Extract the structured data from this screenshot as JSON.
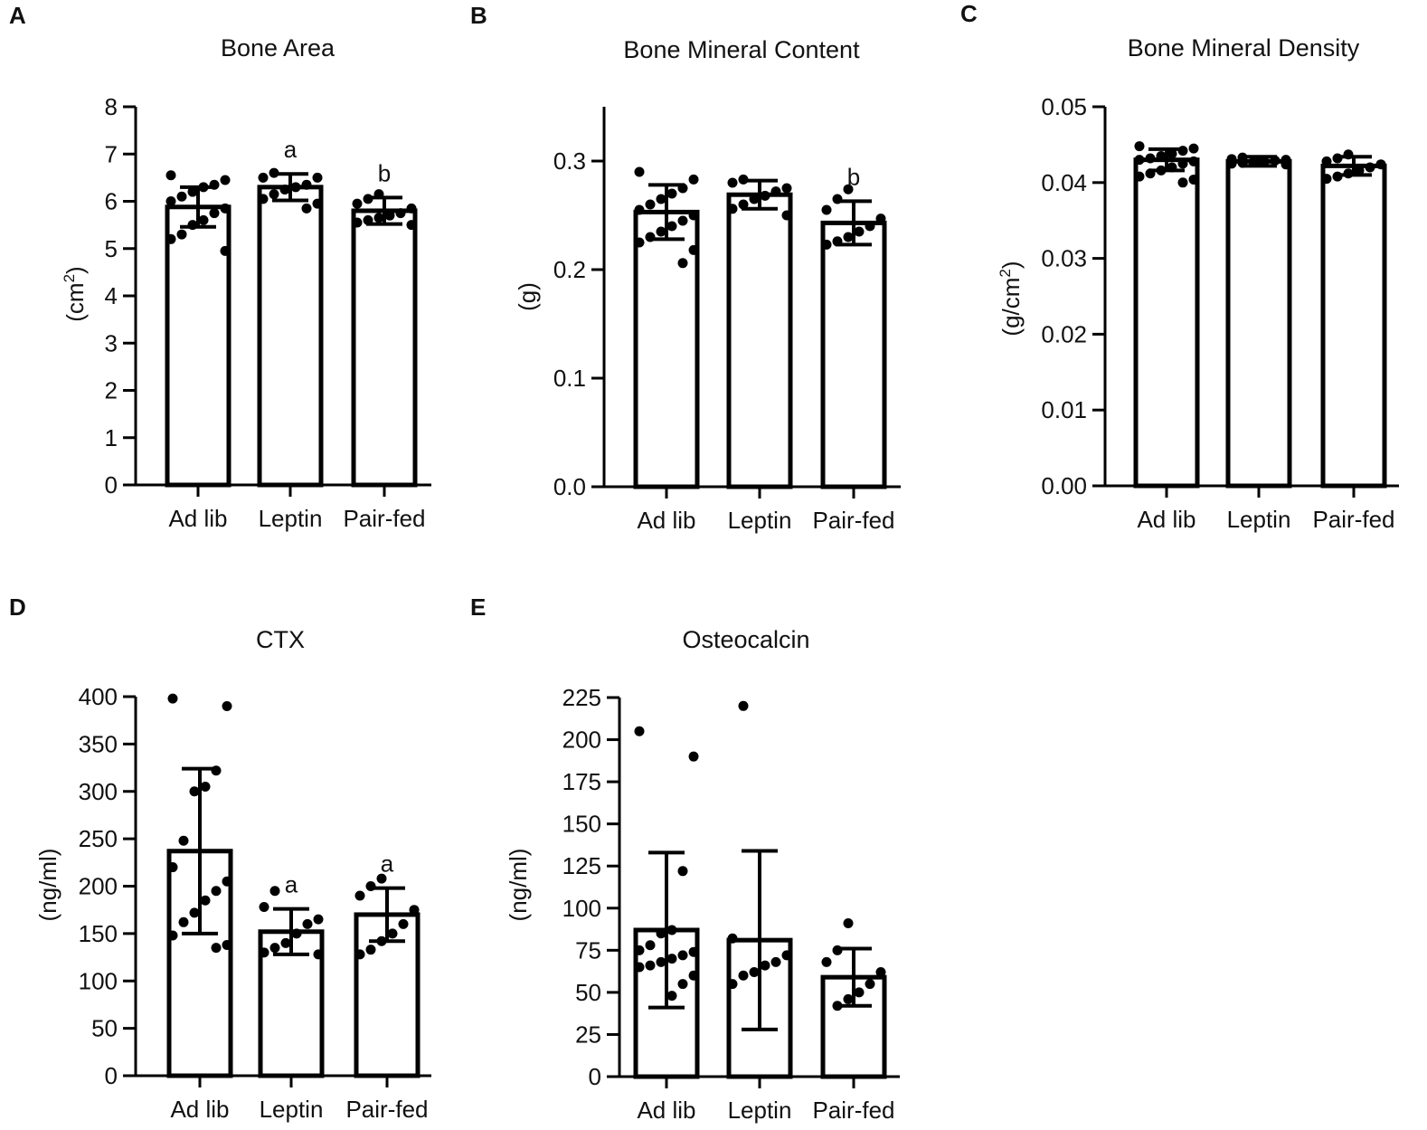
{
  "colors": {
    "ink": "#000000",
    "bar_fill": "#ffffff"
  },
  "chart_data": [
    {
      "panel": "A",
      "type": "bar",
      "title": "Bone Area",
      "ylabel": "(cm²)",
      "ylabel_main": "(cm",
      "ylabel_sup": "2",
      "ylabel_end": ")",
      "xlabel": "",
      "ylim": [
        0,
        8
      ],
      "yticks": [
        0,
        1,
        2,
        3,
        4,
        5,
        6,
        7,
        8
      ],
      "ytick_labels": [
        "0",
        "1",
        "2",
        "3",
        "4",
        "5",
        "6",
        "7",
        "8"
      ],
      "categories": [
        "Ad lib",
        "Leptin",
        "Pair-fed"
      ],
      "values": [
        5.88,
        6.3,
        5.8
      ],
      "error": [
        0.42,
        0.28,
        0.28
      ],
      "significance": [
        "",
        "a",
        "b"
      ],
      "points": [
        [
          6.55,
          6.45,
          6.35,
          6.3,
          6.2,
          6.1,
          6.0,
          5.85,
          5.75,
          5.6,
          5.5,
          5.3,
          5.2,
          4.95
        ],
        [
          6.6,
          6.5,
          6.5,
          6.35,
          6.3,
          6.25,
          6.15,
          6.05,
          5.95,
          5.85
        ],
        [
          6.15,
          6.05,
          5.95,
          5.85,
          5.75,
          5.7,
          5.65,
          5.6,
          5.55,
          5.5
        ]
      ]
    },
    {
      "panel": "B",
      "type": "bar",
      "title": "Bone Mineral Content",
      "ylabel": "(g)",
      "ylabel_main": "(g)",
      "ylabel_sup": "",
      "ylabel_end": "",
      "xlabel": "",
      "ylim": [
        0,
        0.35
      ],
      "yticks": [
        0,
        0.1,
        0.2,
        0.3
      ],
      "ytick_labels": [
        "0.0",
        "0.1",
        "0.2",
        "0.3"
      ],
      "categories": [
        "Ad lib",
        "Leptin",
        "Pair-fed"
      ],
      "values": [
        0.253,
        0.269,
        0.243
      ],
      "error": [
        0.025,
        0.013,
        0.02
      ],
      "significance": [
        "",
        "",
        "b"
      ],
      "points": [
        [
          0.29,
          0.283,
          0.275,
          0.27,
          0.265,
          0.26,
          0.255,
          0.25,
          0.245,
          0.24,
          0.235,
          0.23,
          0.225,
          0.218,
          0.206
        ],
        [
          0.283,
          0.28,
          0.275,
          0.272,
          0.268,
          0.265,
          0.26,
          0.256,
          0.25
        ],
        [
          0.274,
          0.265,
          0.255,
          0.247,
          0.24,
          0.235,
          0.23,
          0.226,
          0.223
        ]
      ]
    },
    {
      "panel": "C",
      "type": "bar",
      "title": "Bone Mineral Density",
      "ylabel": "(g/cm²)",
      "ylabel_main": "(g/cm",
      "ylabel_sup": "2",
      "ylabel_end": ")",
      "xlabel": "",
      "ylim": [
        0,
        0.05
      ],
      "yticks": [
        0,
        0.01,
        0.02,
        0.03,
        0.04,
        0.05
      ],
      "ytick_labels": [
        "0.00",
        "0.01",
        "0.02",
        "0.03",
        "0.04",
        "0.05"
      ],
      "categories": [
        "Ad lib",
        "Leptin",
        "Pair-fed"
      ],
      "values": [
        0.043,
        0.0428,
        0.0422
      ],
      "error": [
        0.0014,
        0.0006,
        0.0012
      ],
      "significance": [
        "",
        "",
        ""
      ],
      "points": [
        [
          0.0448,
          0.0445,
          0.0442,
          0.0438,
          0.0435,
          0.0432,
          0.043,
          0.0428,
          0.0425,
          0.042,
          0.0416,
          0.0412,
          0.0408,
          0.0404,
          0.04
        ],
        [
          0.0433,
          0.0431,
          0.043,
          0.0429,
          0.0428,
          0.0427,
          0.0426,
          0.0425,
          0.0424
        ],
        [
          0.0437,
          0.0432,
          0.0428,
          0.0424,
          0.042,
          0.0416,
          0.0412,
          0.0408,
          0.0405
        ]
      ]
    },
    {
      "panel": "D",
      "type": "bar",
      "title": "CTX",
      "ylabel": "(ng/ml)",
      "ylabel_main": "(ng/ml)",
      "ylabel_sup": "",
      "ylabel_end": "",
      "xlabel": "",
      "ylim": [
        0,
        400
      ],
      "yticks": [
        0,
        50,
        100,
        150,
        200,
        250,
        300,
        350,
        400
      ],
      "ytick_labels": [
        "0",
        "50",
        "100",
        "150",
        "200",
        "250",
        "300",
        "350",
        "400"
      ],
      "categories": [
        "Ad lib",
        "Leptin",
        "Pair-fed"
      ],
      "values": [
        237,
        152,
        170
      ],
      "error": [
        87,
        24,
        28
      ],
      "significance": [
        "",
        "a",
        "a"
      ],
      "points": [
        [
          398,
          390,
          322,
          305,
          300,
          248,
          220,
          205,
          195,
          185,
          172,
          162,
          148,
          138,
          135
        ],
        [
          195,
          178,
          165,
          160,
          150,
          140,
          135,
          130,
          128
        ],
        [
          208,
          200,
          190,
          175,
          160,
          150,
          142,
          133,
          128
        ]
      ]
    },
    {
      "panel": "E",
      "type": "bar",
      "title": "Osteocalcin",
      "ylabel": "(ng/ml)",
      "ylabel_main": "(ng/ml)",
      "ylabel_sup": "",
      "ylabel_end": "",
      "xlabel": "",
      "ylim": [
        0,
        225
      ],
      "yticks": [
        0,
        25,
        50,
        75,
        100,
        125,
        150,
        175,
        200,
        225
      ],
      "ytick_labels": [
        "0",
        "25",
        "50",
        "75",
        "100",
        "125",
        "150",
        "175",
        "200",
        "225"
      ],
      "categories": [
        "Ad lib",
        "Leptin",
        "Pair-fed"
      ],
      "values": [
        87,
        81,
        59
      ],
      "error": [
        46,
        53,
        17
      ],
      "significance": [
        "",
        "",
        ""
      ],
      "points": [
        [
          205,
          190,
          122,
          87,
          85,
          78,
          75,
          74,
          72,
          70,
          68,
          66,
          65,
          60,
          55,
          48
        ],
        [
          220,
          82,
          72,
          68,
          66,
          62,
          60,
          55
        ],
        [
          91,
          75,
          68,
          62,
          55,
          50,
          46,
          42
        ]
      ]
    }
  ]
}
